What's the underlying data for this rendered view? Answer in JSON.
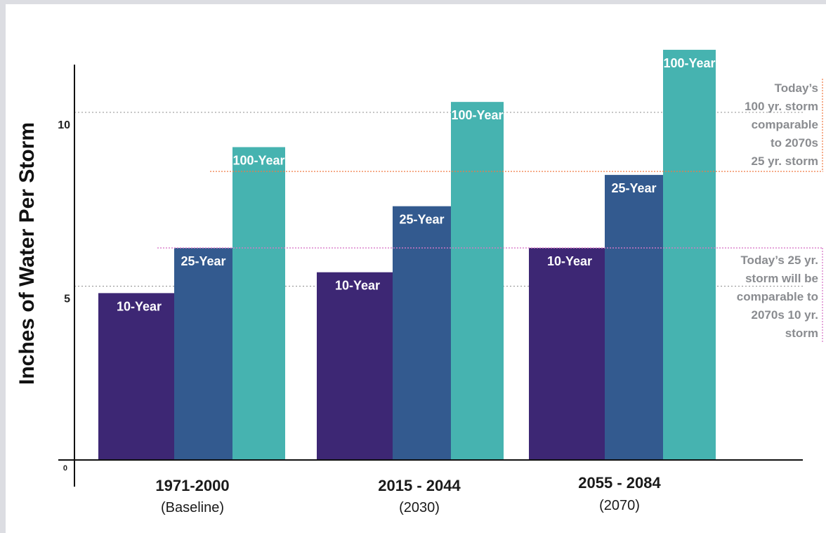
{
  "chart_data": {
    "type": "bar",
    "title": "",
    "ylabel": "Inches of Water Per Storm",
    "xlabel": "",
    "ylim": [
      0,
      12
    ],
    "yticks": [
      0,
      5,
      10
    ],
    "grid": "dotted at 5 and 10",
    "categories": [
      {
        "label": "1971-2000",
        "sub": "(Baseline)"
      },
      {
        "label": "2015 - 2044",
        "sub": "(2030)"
      },
      {
        "label": "2055 - 2084",
        "sub": "(2070)"
      }
    ],
    "series": [
      {
        "name": "10-Year",
        "color": "#3d2774",
        "values": [
          4.8,
          5.4,
          6.1
        ]
      },
      {
        "name": "25-Year",
        "color": "#335a8f",
        "values": [
          6.1,
          7.3,
          8.2
        ]
      },
      {
        "name": "100-Year",
        "color": "#46b3b0",
        "values": [
          9.0,
          10.3,
          11.8
        ]
      }
    ],
    "reference_lines": [
      {
        "value": 8.3,
        "color": "#f07b45",
        "note": [
          "Today’s",
          "100 yr. storm",
          "comparable",
          "to 2070s",
          "25 yr. storm"
        ]
      },
      {
        "value": 6.1,
        "color": "#d979c8",
        "note": [
          "Today’s 25 yr.",
          "storm will be",
          "comparable to",
          "2070s 10 yr.",
          "storm"
        ]
      }
    ]
  }
}
